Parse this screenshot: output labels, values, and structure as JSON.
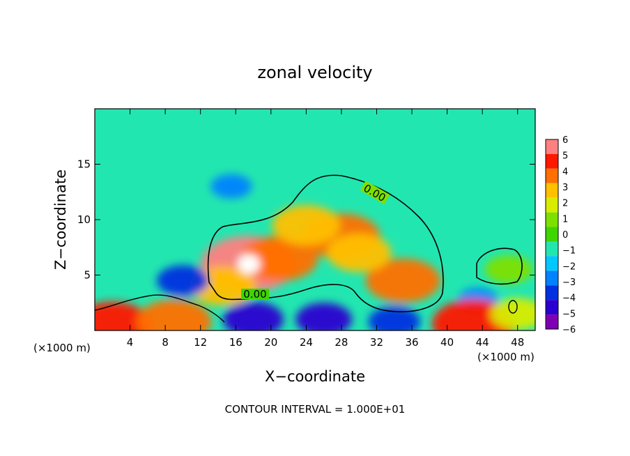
{
  "chart_data": {
    "type": "heatmap",
    "title": "zonal velocity",
    "xlabel": "X−coordinate",
    "ylabel": "Z−coordinate",
    "x_unit_left": "(×1000 m)",
    "x_unit_right": "(×1000 m)",
    "xlim": [
      0,
      50
    ],
    "ylim": [
      0,
      20
    ],
    "x_ticks": [
      4,
      8,
      12,
      16,
      20,
      24,
      28,
      32,
      36,
      40,
      44,
      48
    ],
    "y_ticks": [
      5,
      10,
      15
    ],
    "colorbar": {
      "ticks": [
        "6",
        "5",
        "4",
        "3",
        "2",
        "1",
        "0",
        "−1",
        "−2",
        "−3",
        "−4",
        "−5",
        "−6"
      ],
      "range": [
        -6,
        6
      ]
    },
    "contour_labels": [
      "0.00",
      "0.00"
    ],
    "contour_interval_text": "CONTOUR INTERVAL = 1.000E+01",
    "features": [
      {
        "x": 17.5,
        "z": 6.0,
        "value": 6.5
      },
      {
        "x": 21,
        "z": 6.5,
        "value": 4.2
      },
      {
        "x": 28,
        "z": 8.5,
        "value": 4.3
      },
      {
        "x": 24,
        "z": 9.5,
        "value": 3.2
      },
      {
        "x": 35,
        "z": 4.5,
        "value": 4.0
      },
      {
        "x": 30,
        "z": 7.0,
        "value": 2.8
      },
      {
        "x": 14.5,
        "z": 4.0,
        "value": 3.0
      },
      {
        "x": 47,
        "z": 5.5,
        "value": 0.8
      },
      {
        "x": 15.5,
        "z": 13.0,
        "value": -3.2
      },
      {
        "x": 10,
        "z": 4.5,
        "value": -4.5
      },
      {
        "x": 18,
        "z": 1.0,
        "value": -5.5
      },
      {
        "x": 26,
        "z": 1.0,
        "value": -5.0
      },
      {
        "x": 34,
        "z": 0.8,
        "value": -4.5
      },
      {
        "x": 43.5,
        "z": 2.8,
        "value": -3.0
      },
      {
        "x": 2,
        "z": 0.5,
        "value": 4.5
      },
      {
        "x": 9,
        "z": 0.8,
        "value": 4.0
      },
      {
        "x": 43,
        "z": 0.6,
        "value": 5.0
      },
      {
        "x": 48,
        "z": 1.5,
        "value": 1.5
      }
    ],
    "background_value": -1.6
  }
}
